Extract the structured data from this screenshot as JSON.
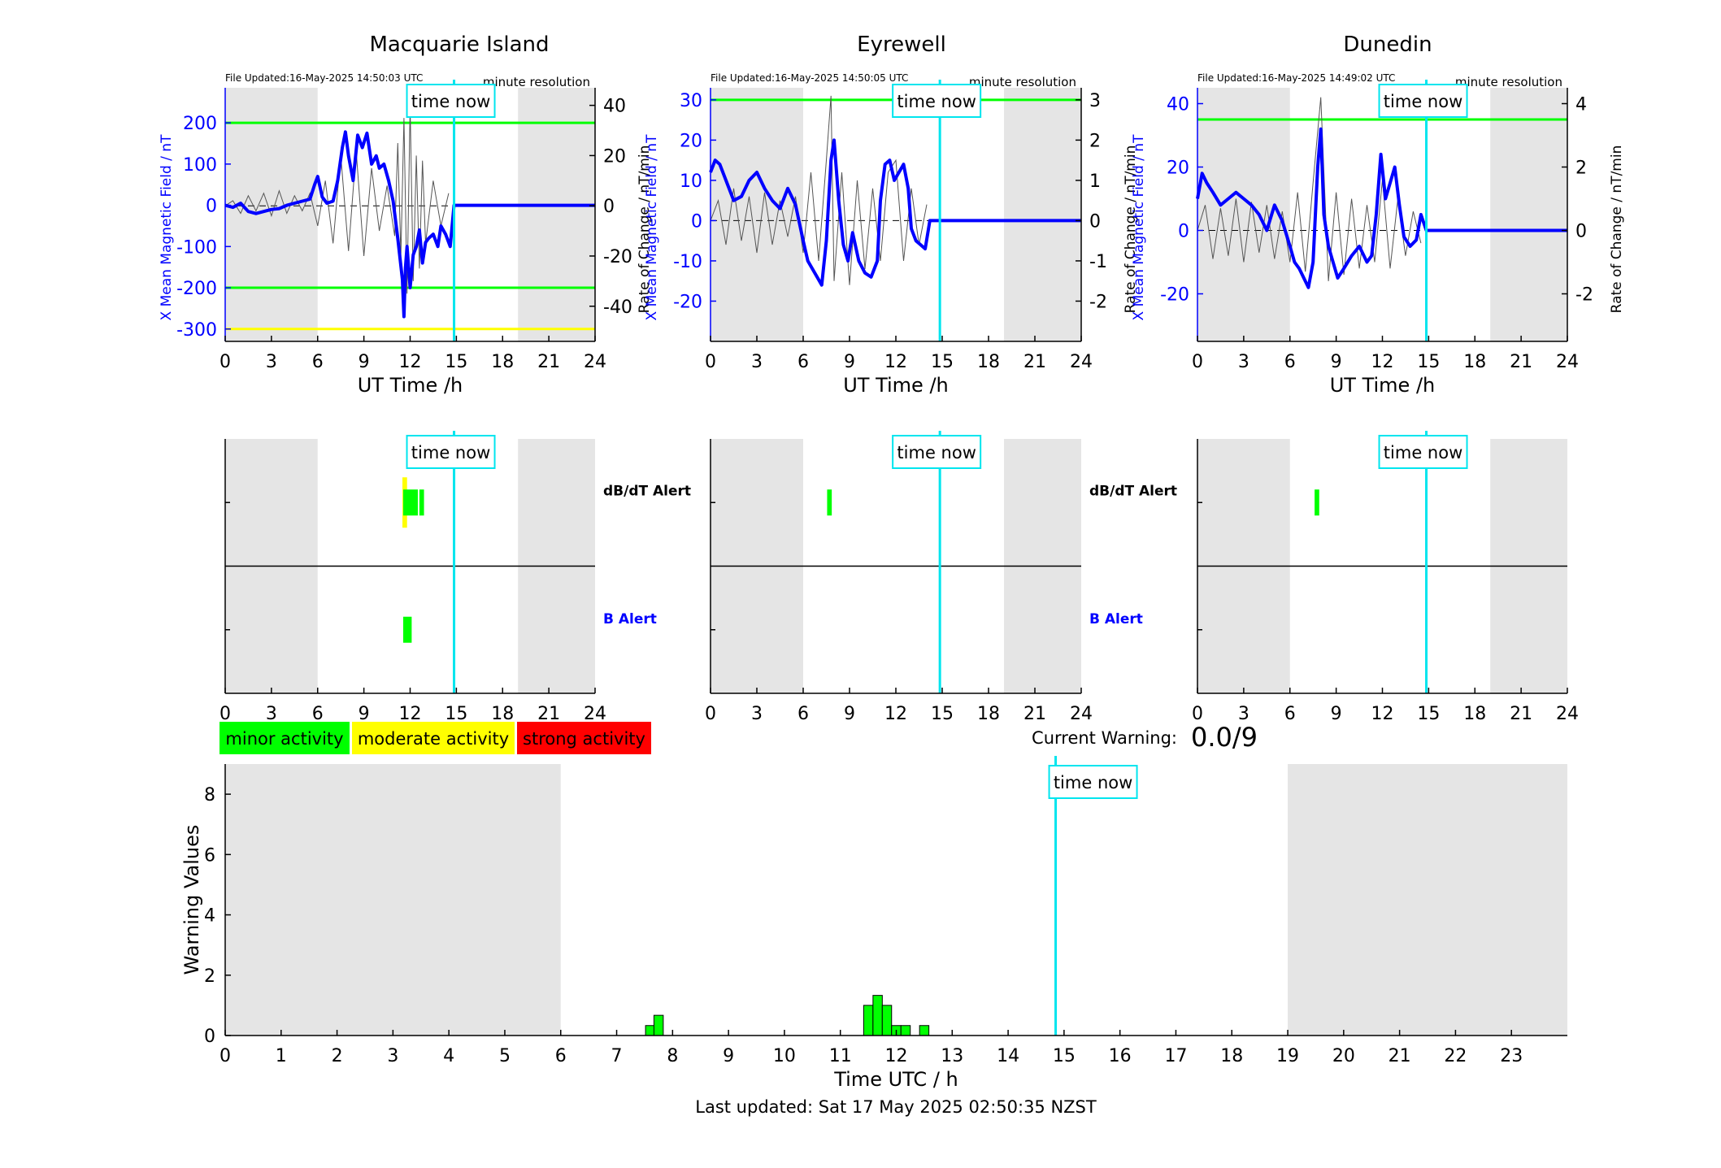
{
  "page": {
    "last_updated": "Last updated: Sat 17 May 2025 02:50:35 NZST",
    "current_warning_label": "Current Warning:",
    "current_warning_value": "0.0/9"
  },
  "legend": [
    {
      "label": "minor activity",
      "color": "#00ff00"
    },
    {
      "label": "moderate activity",
      "color": "#ffff00"
    },
    {
      "label": "strong activity",
      "color": "#ff0000"
    }
  ],
  "labels": {
    "time_now": "time now",
    "x_label_top": "UT Time /h",
    "y_left": "X Mean Magnetic Field / nT",
    "y_right": "Rate of Change / nT/min",
    "resolution": "minute resolution",
    "dbdt_alert": "dB/dT Alert",
    "b_alert": "B Alert"
  },
  "colors": {
    "field_line": "#0000ff",
    "rate_line": "#555555",
    "now_line": "#00e5ee",
    "night_band": "#e5e5e5",
    "threshold_green": "#00ff00",
    "threshold_yellow": "#ffff00",
    "alert_green": "#00ff00",
    "alert_yellow": "#ffff00"
  },
  "chart_data": [
    {
      "type": "line",
      "station": "Macquarie Island",
      "file_updated": "File Updated:16-May-2025 14:50:03 UTC",
      "xlabel": "UT Time /h",
      "ylabel_left": "X Mean Magnetic Field / nT",
      "ylabel_right": "Rate of Change / nT/min",
      "xlim": [
        0,
        24
      ],
      "ylim_left": [
        -330,
        285
      ],
      "ylim_right": [
        -54,
        47
      ],
      "xticks": [
        0,
        3,
        6,
        9,
        12,
        15,
        18,
        21,
        24
      ],
      "yticks_left": [
        -300,
        -200,
        -100,
        0,
        100,
        200
      ],
      "yticks_right": [
        -40,
        -20,
        0,
        20,
        40
      ],
      "night_bands": [
        [
          0,
          6
        ],
        [
          19,
          24
        ]
      ],
      "time_now": 14.85,
      "thresholds": [
        {
          "value": 200,
          "color": "green"
        },
        {
          "value": -200,
          "color": "green"
        },
        {
          "value": -300,
          "color": "yellow"
        }
      ],
      "series": [
        {
          "name": "X Mean Magnetic Field",
          "x": [
            0,
            0.5,
            1,
            1.5,
            2,
            2.5,
            3,
            3.5,
            4,
            4.5,
            5,
            5.5,
            5.8,
            6,
            6.3,
            6.6,
            7,
            7.3,
            7.6,
            7.8,
            8,
            8.3,
            8.6,
            8.9,
            9.2,
            9.5,
            9.8,
            10,
            10.3,
            10.6,
            10.9,
            11.2,
            11.5,
            11.6,
            11.7,
            11.8,
            11.9,
            12,
            12.2,
            12.4,
            12.6,
            12.8,
            13,
            13.2,
            13.5,
            13.8,
            14,
            14.3,
            14.6,
            14.85,
            15,
            18,
            21,
            24
          ],
          "values": [
            0,
            -5,
            5,
            -15,
            -20,
            -15,
            -10,
            -8,
            0,
            5,
            10,
            15,
            50,
            70,
            20,
            5,
            10,
            60,
            140,
            178,
            120,
            60,
            170,
            140,
            175,
            100,
            120,
            90,
            100,
            60,
            10,
            -80,
            -180,
            -270,
            -150,
            -100,
            -150,
            -200,
            -120,
            -100,
            -60,
            -140,
            -90,
            -80,
            -70,
            -100,
            -50,
            -70,
            -100,
            0,
            0,
            0,
            0,
            0
          ]
        },
        {
          "name": "Rate of Change",
          "x": [
            0,
            0.5,
            1,
            1.5,
            2,
            2.5,
            3,
            3.5,
            4,
            4.5,
            5,
            5.5,
            6,
            6.5,
            7,
            7.5,
            8,
            8.5,
            9,
            9.5,
            10,
            10.5,
            11,
            11.2,
            11.4,
            11.6,
            11.8,
            12,
            12.2,
            12.4,
            12.6,
            12.8,
            13,
            13.5,
            14,
            14.5
          ],
          "values": [
            0,
            2,
            -3,
            4,
            -2,
            5,
            -4,
            6,
            -3,
            4,
            -2,
            5,
            -8,
            10,
            -15,
            20,
            -18,
            22,
            -20,
            15,
            -10,
            8,
            -12,
            25,
            -20,
            35,
            -35,
            40,
            -30,
            20,
            -25,
            18,
            -15,
            10,
            -8,
            5
          ]
        }
      ]
    },
    {
      "type": "line",
      "station": "Eyrewell",
      "file_updated": "File Updated:16-May-2025 14:50:05 UTC",
      "xlabel": "UT Time /h",
      "ylabel_left": "X Mean Magnetic Field / nT",
      "ylabel_right": "Rate of Change / nT/min",
      "xlim": [
        0,
        24
      ],
      "ylim_left": [
        -30,
        33
      ],
      "ylim_right": [
        -3,
        3.3
      ],
      "xticks": [
        0,
        3,
        6,
        9,
        12,
        15,
        18,
        21,
        24
      ],
      "yticks_left": [
        -20,
        -10,
        0,
        10,
        20,
        30
      ],
      "yticks_right": [
        -2,
        -1,
        0,
        1,
        2,
        3
      ],
      "night_bands": [
        [
          0,
          6
        ],
        [
          19,
          24
        ]
      ],
      "time_now": 14.85,
      "thresholds": [
        {
          "value": 30,
          "color": "green"
        }
      ],
      "series": [
        {
          "name": "X Mean Magnetic Field",
          "x": [
            0,
            0.3,
            0.6,
            1,
            1.5,
            2,
            2.5,
            3,
            3.5,
            4,
            4.5,
            5,
            5.5,
            6,
            6.3,
            6.6,
            6.9,
            7.2,
            7.5,
            7.8,
            8,
            8.3,
            8.6,
            8.9,
            9.2,
            9.6,
            10,
            10.4,
            10.8,
            11,
            11.3,
            11.6,
            11.9,
            12.2,
            12.5,
            12.8,
            13,
            13.3,
            13.6,
            13.9,
            14.2,
            14.85,
            18,
            21,
            24
          ],
          "values": [
            12,
            15,
            14,
            10,
            5,
            6,
            10,
            12,
            8,
            5,
            3,
            8,
            4,
            -5,
            -10,
            -12,
            -14,
            -16,
            -5,
            15,
            20,
            5,
            -6,
            -10,
            -3,
            -10,
            -13,
            -14,
            -10,
            5,
            14,
            15,
            10,
            12,
            14,
            8,
            -2,
            -5,
            -6,
            -7,
            0,
            0,
            0,
            0,
            0
          ]
        },
        {
          "name": "Rate of Change",
          "x": [
            0,
            0.5,
            1,
            1.5,
            2,
            2.5,
            3,
            3.5,
            4,
            4.5,
            5,
            5.5,
            6,
            6.5,
            7,
            7.5,
            7.8,
            8,
            8.5,
            9,
            9.5,
            10,
            10.5,
            11,
            11.5,
            12,
            12.5,
            13,
            13.5,
            14
          ],
          "values": [
            0,
            0.5,
            -0.6,
            0.8,
            -0.5,
            0.6,
            -0.8,
            0.7,
            -0.6,
            0.5,
            -0.4,
            0.6,
            -0.8,
            1.2,
            -1,
            1.5,
            3.1,
            -1.5,
            1.2,
            -1.6,
            1,
            -1.2,
            0.8,
            -1,
            1.2,
            1.5,
            -1,
            0.8,
            -0.6,
            0.4
          ]
        }
      ]
    },
    {
      "type": "line",
      "station": "Dunedin",
      "file_updated": "File Updated:16-May-2025 14:49:02 UTC",
      "xlabel": "UT Time /h",
      "ylabel_left": "X Mean Magnetic Field / nT",
      "ylabel_right": "Rate of Change / nT/min",
      "xlim": [
        0,
        24
      ],
      "ylim_left": [
        -35,
        45
      ],
      "ylim_right": [
        -3.5,
        4.5
      ],
      "xticks": [
        0,
        3,
        6,
        9,
        12,
        15,
        18,
        21,
        24
      ],
      "yticks_left": [
        -20,
        0,
        20,
        40
      ],
      "yticks_right": [
        -2,
        0,
        2,
        4
      ],
      "night_bands": [
        [
          0,
          6
        ],
        [
          19,
          24
        ]
      ],
      "time_now": 14.85,
      "thresholds": [
        {
          "value": 35,
          "color": "green"
        }
      ],
      "series": [
        {
          "name": "X Mean Magnetic Field",
          "x": [
            0,
            0.3,
            0.6,
            1,
            1.5,
            2,
            2.5,
            3,
            3.5,
            4,
            4.5,
            5,
            5.5,
            6,
            6.3,
            6.6,
            6.9,
            7.2,
            7.5,
            7.8,
            8,
            8.2,
            8.5,
            8.8,
            9.1,
            9.5,
            10,
            10.5,
            11,
            11.3,
            11.6,
            11.9,
            12.2,
            12.5,
            12.8,
            13.1,
            13.4,
            13.8,
            14.2,
            14.5,
            14.85,
            18,
            21,
            24
          ],
          "values": [
            10,
            18,
            15,
            12,
            8,
            10,
            12,
            10,
            8,
            5,
            0,
            8,
            3,
            -5,
            -10,
            -12,
            -15,
            -18,
            -10,
            20,
            32,
            5,
            -5,
            -10,
            -15,
            -12,
            -8,
            -5,
            -10,
            -8,
            5,
            24,
            10,
            15,
            20,
            8,
            -2,
            -5,
            -3,
            5,
            0,
            0,
            0,
            0
          ]
        },
        {
          "name": "Rate of Change",
          "x": [
            0,
            0.5,
            1,
            1.5,
            2,
            2.5,
            3,
            3.5,
            4,
            4.5,
            5,
            5.5,
            6,
            6.5,
            7,
            7.5,
            8,
            8.5,
            9,
            9.5,
            10,
            10.5,
            11,
            11.5,
            12,
            12.5,
            13,
            13.5,
            14,
            14.5
          ],
          "values": [
            0,
            0.8,
            -0.9,
            0.7,
            -0.8,
            1,
            -1,
            0.9,
            -0.7,
            0.8,
            -0.9,
            0.6,
            -1,
            1.2,
            -1.3,
            1.5,
            4.2,
            -1.6,
            1.2,
            -1.4,
            1,
            -1.2,
            0.8,
            -1,
            1.6,
            -1.2,
            1,
            -0.8,
            0.6,
            -0.4
          ]
        }
      ]
    },
    {
      "type": "bar",
      "panel": "Macquarie Island alerts",
      "xlim": [
        0,
        24
      ],
      "xticks": [
        0,
        3,
        6,
        9,
        12,
        15,
        18,
        21,
        24
      ],
      "night_bands": [
        [
          0,
          6
        ],
        [
          19,
          24
        ]
      ],
      "time_now": 14.85,
      "rows": [
        "dB/dT Alert",
        "B Alert"
      ],
      "alerts": [
        {
          "row": "dB/dT Alert",
          "start": 11.5,
          "end": 11.8,
          "level": "yellow"
        },
        {
          "row": "dB/dT Alert",
          "start": 11.55,
          "end": 12.5,
          "level": "green"
        },
        {
          "row": "dB/dT Alert",
          "start": 12.6,
          "end": 12.9,
          "level": "green"
        },
        {
          "row": "B Alert",
          "start": 11.55,
          "end": 12.1,
          "level": "green"
        }
      ]
    },
    {
      "type": "bar",
      "panel": "Eyrewell alerts",
      "xlim": [
        0,
        24
      ],
      "xticks": [
        0,
        3,
        6,
        9,
        12,
        15,
        18,
        21,
        24
      ],
      "night_bands": [
        [
          0,
          6
        ],
        [
          19,
          24
        ]
      ],
      "time_now": 14.85,
      "rows": [
        "dB/dT Alert",
        "B Alert"
      ],
      "alerts": [
        {
          "row": "dB/dT Alert",
          "start": 7.55,
          "end": 7.85,
          "level": "green"
        }
      ]
    },
    {
      "type": "bar",
      "panel": "Dunedin alerts",
      "xlim": [
        0,
        24
      ],
      "xticks": [
        0,
        3,
        6,
        9,
        12,
        15,
        18,
        21,
        24
      ],
      "night_bands": [
        [
          0,
          6
        ],
        [
          19,
          24
        ]
      ],
      "time_now": 14.85,
      "rows": [
        "dB/dT Alert",
        "B Alert"
      ],
      "alerts": [
        {
          "row": "dB/dT Alert",
          "start": 7.6,
          "end": 7.9,
          "level": "green"
        }
      ]
    },
    {
      "type": "bar",
      "panel": "Warning Values",
      "xlabel": "Time UTC / h",
      "ylabel": "Warning Values",
      "xlim": [
        0,
        24
      ],
      "ylim": [
        0,
        9
      ],
      "xticks": [
        0,
        1,
        2,
        3,
        4,
        5,
        6,
        7,
        8,
        9,
        10,
        11,
        12,
        13,
        14,
        15,
        16,
        17,
        18,
        19,
        20,
        21,
        22,
        23
      ],
      "yticks": [
        0,
        2,
        4,
        6,
        8
      ],
      "night_bands": [
        [
          0,
          6
        ],
        [
          19,
          24
        ]
      ],
      "time_now": 14.85,
      "x": [
        7.6,
        7.75,
        11.5,
        11.667,
        11.833,
        12,
        12.167,
        12.5
      ],
      "values": [
        0.33,
        0.67,
        1.0,
        1.33,
        1.0,
        0.33,
        0.33,
        0.33
      ]
    }
  ]
}
